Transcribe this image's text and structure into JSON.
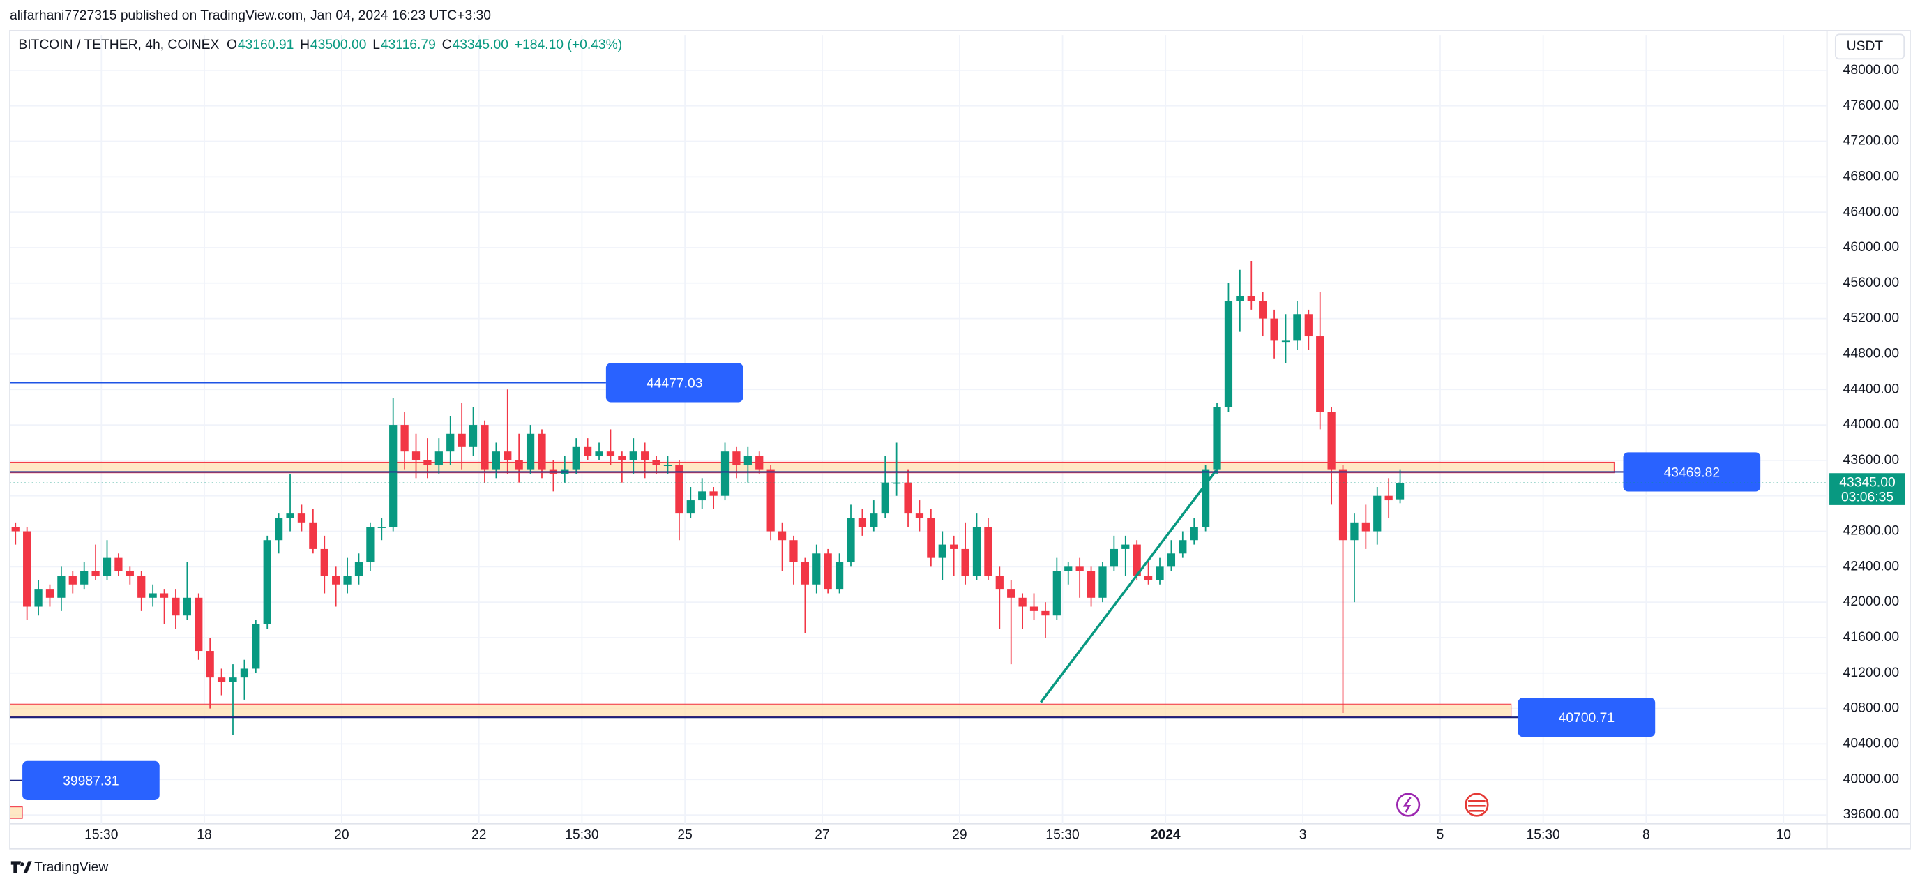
{
  "header": {
    "publisher": "alifarhani7727315 published on TradingView.com, Jan 04, 2024 16:23 UTC+3:30",
    "brand": "TradingView"
  },
  "chart_data": {
    "type": "candlestick",
    "title": "BITCOIN / TETHER, 4h, COINEX",
    "ohlc_letters": [
      "O",
      "H",
      "L",
      "C"
    ],
    "ohlc_values": [
      "43160.91",
      "43500.00",
      "43116.79",
      "43345.00"
    ],
    "change": "+184.10 (+0.43%)",
    "currency": "USDT",
    "up_color": "#089981",
    "down_color": "#f23645",
    "candles": [
      [
        42850,
        42900,
        42650,
        42800
      ],
      [
        42800,
        42850,
        41800,
        41950
      ],
      [
        41950,
        42250,
        41850,
        42150
      ],
      [
        42150,
        42200,
        41950,
        42050
      ],
      [
        42050,
        42400,
        41900,
        42300
      ],
      [
        42300,
        42350,
        42100,
        42200
      ],
      [
        42200,
        42450,
        42150,
        42350
      ],
      [
        42350,
        42650,
        42250,
        42300
      ],
      [
        42300,
        42700,
        42250,
        42500
      ],
      [
        42500,
        42550,
        42300,
        42350
      ],
      [
        42350,
        42400,
        42200,
        42300
      ],
      [
        42300,
        42350,
        41900,
        42050
      ],
      [
        42050,
        42200,
        41950,
        42100
      ],
      [
        42100,
        42150,
        41750,
        42050
      ],
      [
        42050,
        42150,
        41700,
        41850
      ],
      [
        41850,
        42450,
        41800,
        42050
      ],
      [
        42050,
        42100,
        41350,
        41450
      ],
      [
        41450,
        41600,
        40800,
        41150
      ],
      [
        41150,
        41250,
        40950,
        41100
      ],
      [
        41100,
        41300,
        40500,
        41150
      ],
      [
        41150,
        41350,
        40900,
        41250
      ],
      [
        41250,
        41800,
        41200,
        41750
      ],
      [
        41750,
        42750,
        41700,
        42700
      ],
      [
        42700,
        43000,
        42550,
        42950
      ],
      [
        42950,
        43450,
        42800,
        43000
      ],
      [
        43000,
        43100,
        42800,
        42900
      ],
      [
        42900,
        43050,
        42550,
        42600
      ],
      [
        42600,
        42750,
        42100,
        42300
      ],
      [
        42300,
        42400,
        41950,
        42200
      ],
      [
        42200,
        42500,
        42100,
        42300
      ],
      [
        42300,
        42550,
        42200,
        42450
      ],
      [
        42450,
        42900,
        42350,
        42850
      ],
      [
        42850,
        42950,
        42700,
        42850
      ],
      [
        42850,
        44300,
        42800,
        44000
      ],
      [
        44000,
        44150,
        43500,
        43700
      ],
      [
        43700,
        43900,
        43400,
        43600
      ],
      [
        43600,
        43850,
        43400,
        43550
      ],
      [
        43550,
        43850,
        43450,
        43700
      ],
      [
        43700,
        44100,
        43550,
        43900
      ],
      [
        43900,
        44250,
        43500,
        43750
      ],
      [
        43750,
        44200,
        43650,
        44000
      ],
      [
        44000,
        44050,
        43350,
        43500
      ],
      [
        43500,
        43800,
        43400,
        43700
      ],
      [
        43700,
        44400,
        43450,
        43600
      ],
      [
        43600,
        43900,
        43350,
        43500
      ],
      [
        43500,
        44000,
        43450,
        43900
      ],
      [
        43900,
        43950,
        43400,
        43500
      ],
      [
        43500,
        43600,
        43250,
        43450
      ],
      [
        43450,
        43650,
        43350,
        43500
      ],
      [
        43500,
        43850,
        43450,
        43750
      ],
      [
        43750,
        43850,
        43600,
        43650
      ],
      [
        43650,
        43800,
        43600,
        43700
      ],
      [
        43700,
        43950,
        43550,
        43650
      ],
      [
        43650,
        43700,
        43350,
        43600
      ],
      [
        43600,
        43850,
        43450,
        43700
      ],
      [
        43700,
        43800,
        43400,
        43600
      ],
      [
        43600,
        43650,
        43450,
        43550
      ],
      [
        43550,
        43650,
        43450,
        43550
      ],
      [
        43550,
        43600,
        42700,
        43000
      ],
      [
        43000,
        43300,
        42950,
        43150
      ],
      [
        43150,
        43400,
        43050,
        43250
      ],
      [
        43250,
        43300,
        43050,
        43200
      ],
      [
        43200,
        43800,
        43150,
        43700
      ],
      [
        43700,
        43750,
        43400,
        43550
      ],
      [
        43550,
        43750,
        43350,
        43650
      ],
      [
        43650,
        43700,
        43450,
        43500
      ],
      [
        43500,
        43550,
        42700,
        42800
      ],
      [
        42800,
        42900,
        42350,
        42700
      ],
      [
        42700,
        42750,
        42200,
        42450
      ],
      [
        42450,
        42500,
        41650,
        42200
      ],
      [
        42200,
        42650,
        42100,
        42550
      ],
      [
        42550,
        42600,
        42100,
        42150
      ],
      [
        42150,
        42550,
        42100,
        42450
      ],
      [
        42450,
        43100,
        42400,
        42950
      ],
      [
        42950,
        43050,
        42750,
        42850
      ],
      [
        42850,
        43150,
        42800,
        43000
      ],
      [
        43000,
        43650,
        42950,
        43350
      ],
      [
        43350,
        43800,
        43200,
        43350
      ],
      [
        43350,
        43500,
        42850,
        43000
      ],
      [
        43000,
        43150,
        42800,
        42950
      ],
      [
        42950,
        43050,
        42400,
        42500
      ],
      [
        42500,
        42800,
        42250,
        42650
      ],
      [
        42650,
        42750,
        42300,
        42600
      ],
      [
        42600,
        42900,
        42200,
        42300
      ],
      [
        42300,
        43000,
        42250,
        42850
      ],
      [
        42850,
        42950,
        42250,
        42300
      ],
      [
        42300,
        42400,
        41700,
        42150
      ],
      [
        42150,
        42250,
        41300,
        42050
      ],
      [
        42050,
        42100,
        41700,
        41950
      ],
      [
        41950,
        42100,
        41800,
        41900
      ],
      [
        41900,
        42000,
        41600,
        41850
      ],
      [
        41850,
        42500,
        41800,
        42350
      ],
      [
        42350,
        42450,
        42200,
        42400
      ],
      [
        42400,
        42500,
        42050,
        42350
      ],
      [
        42350,
        42400,
        41950,
        42050
      ],
      [
        42050,
        42450,
        42000,
        42400
      ],
      [
        42400,
        42750,
        42350,
        42600
      ],
      [
        42600,
        42750,
        42300,
        42650
      ],
      [
        42650,
        42700,
        42250,
        42300
      ],
      [
        42300,
        42450,
        42200,
        42250
      ],
      [
        42250,
        42500,
        42200,
        42400
      ],
      [
        42400,
        42700,
        42350,
        42550
      ],
      [
        42550,
        42800,
        42500,
        42700
      ],
      [
        42700,
        42950,
        42650,
        42850
      ],
      [
        42850,
        43550,
        42800,
        43500
      ],
      [
        43500,
        44250,
        43450,
        44200
      ],
      [
        44200,
        45600,
        44150,
        45400
      ],
      [
        45400,
        45750,
        45050,
        45450
      ],
      [
        45450,
        45850,
        45300,
        45400
      ],
      [
        45400,
        45500,
        45000,
        45200
      ],
      [
        45200,
        45300,
        44750,
        44950
      ],
      [
        44950,
        45250,
        44700,
        44950
      ],
      [
        44950,
        45400,
        44850,
        45250
      ],
      [
        45250,
        45300,
        44850,
        45000
      ],
      [
        45000,
        45500,
        43950,
        44150
      ],
      [
        44150,
        44200,
        43100,
        43500
      ],
      [
        43500,
        43550,
        40750,
        42700
      ],
      [
        42700,
        43000,
        42000,
        42900
      ],
      [
        42900,
        43100,
        42600,
        42800
      ],
      [
        42800,
        43300,
        42650,
        43200
      ],
      [
        43200,
        43400,
        42950,
        43150
      ],
      [
        43160.91,
        43500,
        43116.79,
        43345
      ]
    ],
    "xlim": [
      -0.5,
      158.3
    ],
    "xticks": [
      {
        "value": 7.5,
        "label": "15:30"
      },
      {
        "value": 16.5,
        "label": "18"
      },
      {
        "value": 28.5,
        "label": "20"
      },
      {
        "value": 40.5,
        "label": "22"
      },
      {
        "value": 49.5,
        "label": "15:30"
      },
      {
        "value": 58.5,
        "label": "25"
      },
      {
        "value": 70.5,
        "label": "27"
      },
      {
        "value": 82.5,
        "label": "29"
      },
      {
        "value": 91.5,
        "label": "15:30"
      },
      {
        "value": 100.5,
        "label": "2024"
      },
      {
        "value": 112.5,
        "label": "3"
      },
      {
        "value": 124.5,
        "label": "5"
      },
      {
        "value": 133.5,
        "label": "15:30"
      },
      {
        "value": 142.5,
        "label": "8"
      },
      {
        "value": 154.5,
        "label": "10"
      }
    ],
    "ylim": [
      39500,
      48400
    ],
    "yticks": [
      {
        "value": 39600,
        "label": "39600.00"
      },
      {
        "value": 40000,
        "label": "40000.00"
      },
      {
        "value": 40400,
        "label": "40400.00"
      },
      {
        "value": 40800,
        "label": "40800.00"
      },
      {
        "value": 41200,
        "label": "41200.00"
      },
      {
        "value": 41600,
        "label": "41600.00"
      },
      {
        "value": 42000,
        "label": "42000.00"
      },
      {
        "value": 42400,
        "label": "42400.00"
      },
      {
        "value": 42800,
        "label": "42800.00"
      },
      {
        "value": 43200,
        "label": "43200.00"
      },
      {
        "value": 43600,
        "label": "43600.00"
      },
      {
        "value": 44000,
        "label": "44000.00"
      },
      {
        "value": 44400,
        "label": "44400.00"
      },
      {
        "value": 44800,
        "label": "44800.00"
      },
      {
        "value": 45200,
        "label": "45200.00"
      },
      {
        "value": 45600,
        "label": "45600.00"
      },
      {
        "value": 46000,
        "label": "46000.00"
      },
      {
        "value": 46400,
        "label": "46400.00"
      },
      {
        "value": 46800,
        "label": "46800.00"
      },
      {
        "value": 47200,
        "label": "47200.00"
      },
      {
        "value": 47600,
        "label": "47600.00"
      },
      {
        "value": 48000,
        "label": "48000.00"
      }
    ],
    "grid": true,
    "last_price": {
      "value": 43345,
      "label": "43345.00"
    },
    "countdown": "03:06:35",
    "levels": [
      {
        "value": 44477.03,
        "x": [
          -0.5,
          51.6
        ],
        "color": "#1e53e5"
      },
      {
        "value": 43469.82,
        "x": [
          -0.5,
          140.5
        ],
        "color": "#283593"
      },
      {
        "value": 40700.71,
        "x": [
          -0.5,
          131.3
        ],
        "color": "#1a237e"
      },
      {
        "value": 39987.31,
        "x": [
          -0.5,
          0.6
        ],
        "color": "#1a237e"
      }
    ],
    "zones": [
      {
        "y": [
          43460,
          43580
        ],
        "x": [
          -0.5,
          139.7
        ]
      },
      {
        "y": [
          40710,
          40850
        ],
        "x": [
          -0.5,
          130.7
        ]
      },
      {
        "y": [
          39560,
          39690
        ],
        "x": [
          -0.5,
          0.6
        ]
      }
    ],
    "trend_line": {
      "x": [
        89.6,
        105
      ],
      "y": [
        40870,
        43500
      ],
      "color": "#089981"
    }
  }
}
